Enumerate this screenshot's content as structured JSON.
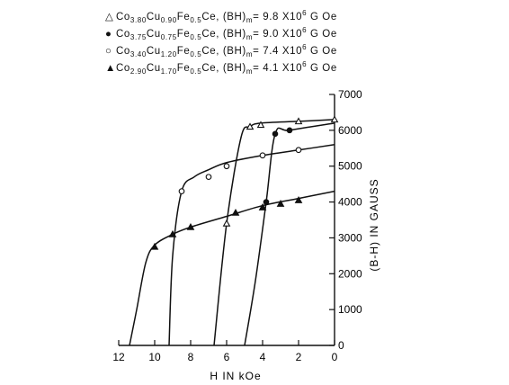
{
  "chart_data": {
    "type": "line",
    "xlabel": "H IN kOe",
    "ylabel": "(B-H)  IN GAUSS",
    "xlim": [
      12,
      0
    ],
    "ylim": [
      0,
      7000
    ],
    "x_reversed": true,
    "x_ticks": [
      12,
      10,
      8,
      6,
      4,
      2,
      0
    ],
    "y_ticks": [
      0,
      1000,
      2000,
      3000,
      4000,
      5000,
      6000,
      7000
    ],
    "y_axis_side": "right",
    "legend_placement": "top-left",
    "grid": false,
    "series": [
      {
        "symbol": "triangle-open",
        "legend": {
          "base": "Co",
          "a": "3.80",
          "m1": "Cu",
          "b": "0.90",
          "m2": "Fe",
          "c": "0.5",
          "tail": "Ce, (BH)",
          "sub": "m",
          "val": "= 9.8 X10",
          "exp": "6",
          "unit": "G Oe"
        },
        "points": [
          [
            6.7,
            0
          ],
          [
            6.0,
            3400
          ],
          [
            5.2,
            5800
          ],
          [
            4.7,
            6100
          ],
          [
            4.1,
            6200
          ],
          [
            2.0,
            6250
          ],
          [
            0,
            6300
          ]
        ],
        "markers": [
          [
            6.0,
            3400
          ],
          [
            4.7,
            6100
          ],
          [
            4.1,
            6150
          ],
          [
            2.0,
            6250
          ],
          [
            0,
            6300
          ]
        ]
      },
      {
        "symbol": "circle-filled",
        "legend": {
          "base": "Co",
          "a": "3.75",
          "m1": "Cu",
          "b": "0.75",
          "m2": "Fe",
          "c": "0.5",
          "tail": "Ce, (BH)",
          "sub": "m",
          "val": "= 9.0 X10",
          "exp": "6",
          "unit": "G Oe"
        },
        "points": [
          [
            5.0,
            0
          ],
          [
            4.4,
            1800
          ],
          [
            3.8,
            4000
          ],
          [
            3.3,
            5900
          ],
          [
            2.5,
            6000
          ],
          [
            0,
            6200
          ]
        ],
        "markers": [
          [
            3.8,
            4000
          ],
          [
            3.3,
            5900
          ],
          [
            2.5,
            6000
          ]
        ]
      },
      {
        "symbol": "circle-open",
        "legend": {
          "base": "Co",
          "a": "3.40",
          "m1": "Cu",
          "b": "1.20",
          "m2": "Fe",
          "c": "0.5",
          "tail": "Ce, (BH)",
          "sub": "m",
          "val": "= 7.4 X10",
          "exp": "6",
          "unit": "G Oe"
        },
        "points": [
          [
            9.2,
            0
          ],
          [
            9.0,
            2500
          ],
          [
            8.5,
            4300
          ],
          [
            7.8,
            4700
          ],
          [
            7.0,
            4900
          ],
          [
            6.0,
            5100
          ],
          [
            4.0,
            5300
          ],
          [
            2.0,
            5450
          ],
          [
            0,
            5600
          ]
        ],
        "markers": [
          [
            8.5,
            4300
          ],
          [
            7.0,
            4700
          ],
          [
            6.0,
            5000
          ],
          [
            4.0,
            5300
          ],
          [
            2.0,
            5450
          ]
        ]
      },
      {
        "symbol": "triangle-filled",
        "legend": {
          "base": "Co",
          "a": "2.90",
          "m1": "Cu",
          "b": "1.70",
          "m2": "Fe",
          "c": "0.5",
          "tail": "Ce, (BH)",
          "sub": "m",
          "val": "= 4.1 X10",
          "exp": "6",
          "unit": "G Oe"
        },
        "points": [
          [
            11.4,
            0
          ],
          [
            11.0,
            1000
          ],
          [
            10.5,
            2300
          ],
          [
            10.0,
            2800
          ],
          [
            9.0,
            3100
          ],
          [
            8.0,
            3300
          ],
          [
            6.0,
            3600
          ],
          [
            4.0,
            3900
          ],
          [
            2.0,
            4100
          ],
          [
            0,
            4300
          ]
        ],
        "markers": [
          [
            10.0,
            2750
          ],
          [
            9.0,
            3100
          ],
          [
            8.0,
            3300
          ],
          [
            5.5,
            3700
          ],
          [
            4.0,
            3850
          ],
          [
            3.0,
            3950
          ],
          [
            2.0,
            4050
          ]
        ]
      }
    ]
  }
}
